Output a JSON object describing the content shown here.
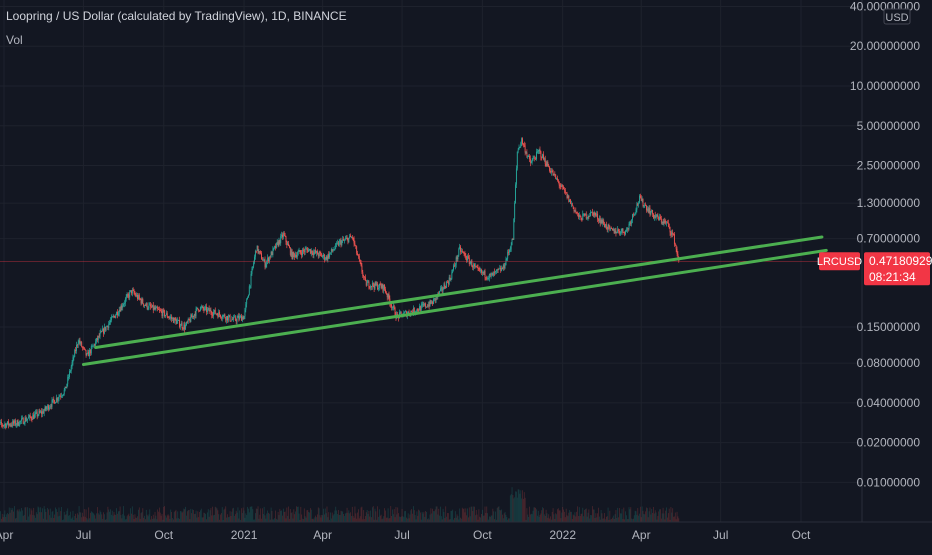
{
  "header": {
    "title": "Loopring / US Dollar (calculated by TradingView), 1D, BINANCE",
    "vol_label": "Vol"
  },
  "chart_data": {
    "type": "candlestick",
    "symbol": "LRCUSD",
    "scale": "log",
    "currency_label": "USD",
    "y_ticks": [
      "40.00000000",
      "20.00000000",
      "10.00000000",
      "5.00000000",
      "2.50000000",
      "1.30000000",
      "0.70000000",
      "0.15000000",
      "0.08000000",
      "0.04000000",
      "0.02000000",
      "0.01000000"
    ],
    "y_tick_values": [
      40,
      20,
      10,
      5,
      2.5,
      1.3,
      0.7,
      0.15,
      0.08,
      0.04,
      0.02,
      0.01
    ],
    "x_ticks": [
      "Apr",
      "Jul",
      "Oct",
      "2021",
      "Apr",
      "Jul",
      "Oct",
      "2022",
      "Apr",
      "Jul",
      "Oct"
    ],
    "x_tick_dates": [
      "2020-04-01",
      "2020-07-01",
      "2020-10-01",
      "2021-01-01",
      "2021-04-01",
      "2021-07-01",
      "2021-10-01",
      "2022-01-01",
      "2022-04-01",
      "2022-07-01",
      "2022-10-01"
    ],
    "x_start": "2020-03-20",
    "last_price": "0.47180929",
    "last_price_value": 0.4718,
    "countdown": "08:21:34",
    "price_path": [
      [
        "2020-03-20",
        0.027
      ],
      [
        "2020-04-15",
        0.028
      ],
      [
        "2020-05-15",
        0.034
      ],
      [
        "2020-06-10",
        0.05
      ],
      [
        "2020-06-25",
        0.12
      ],
      [
        "2020-07-05",
        0.09
      ],
      [
        "2020-07-20",
        0.13
      ],
      [
        "2020-08-10",
        0.2
      ],
      [
        "2020-08-25",
        0.28
      ],
      [
        "2020-09-10",
        0.22
      ],
      [
        "2020-10-01",
        0.19
      ],
      [
        "2020-10-25",
        0.15
      ],
      [
        "2020-11-10",
        0.21
      ],
      [
        "2020-12-01",
        0.19
      ],
      [
        "2020-12-20",
        0.17
      ],
      [
        "2021-01-01",
        0.18
      ],
      [
        "2021-01-15",
        0.6
      ],
      [
        "2021-01-25",
        0.45
      ],
      [
        "2021-02-15",
        0.75
      ],
      [
        "2021-02-25",
        0.52
      ],
      [
        "2021-03-15",
        0.58
      ],
      [
        "2021-04-05",
        0.5
      ],
      [
        "2021-04-20",
        0.65
      ],
      [
        "2021-05-05",
        0.72
      ],
      [
        "2021-05-20",
        0.32
      ],
      [
        "2021-06-10",
        0.3
      ],
      [
        "2021-06-25",
        0.18
      ],
      [
        "2021-07-15",
        0.2
      ],
      [
        "2021-08-05",
        0.23
      ],
      [
        "2021-08-25",
        0.35
      ],
      [
        "2021-09-05",
        0.58
      ],
      [
        "2021-09-25",
        0.4
      ],
      [
        "2021-10-10",
        0.36
      ],
      [
        "2021-10-25",
        0.42
      ],
      [
        "2021-11-05",
        0.7
      ],
      [
        "2021-11-10",
        3.2
      ],
      [
        "2021-11-15",
        3.9
      ],
      [
        "2021-11-25",
        2.6
      ],
      [
        "2021-12-05",
        3.2
      ],
      [
        "2021-12-20",
        2.2
      ],
      [
        "2022-01-05",
        1.5
      ],
      [
        "2022-01-20",
        1.0
      ],
      [
        "2022-02-05",
        1.1
      ],
      [
        "2022-02-25",
        0.8
      ],
      [
        "2022-03-15",
        0.8
      ],
      [
        "2022-03-30",
        1.4
      ],
      [
        "2022-04-15",
        1.05
      ],
      [
        "2022-05-01",
        0.9
      ],
      [
        "2022-05-08",
        0.72
      ],
      [
        "2022-05-14",
        0.4718
      ]
    ],
    "trendlines": [
      {
        "name": "upper",
        "from": [
          "2020-07-15",
          0.105
        ],
        "to": [
          "2022-10-25",
          0.72
        ]
      },
      {
        "name": "lower",
        "from": [
          "2020-07-01",
          0.078
        ],
        "to": [
          "2022-10-30",
          0.57
        ]
      }
    ],
    "colors": {
      "background": "#131722",
      "up": "#26a69a",
      "down": "#ef5350",
      "trendline": "#4caf50",
      "price_tag": "#f23645",
      "grid": "#1e222d",
      "text": "#b2b5be"
    }
  }
}
